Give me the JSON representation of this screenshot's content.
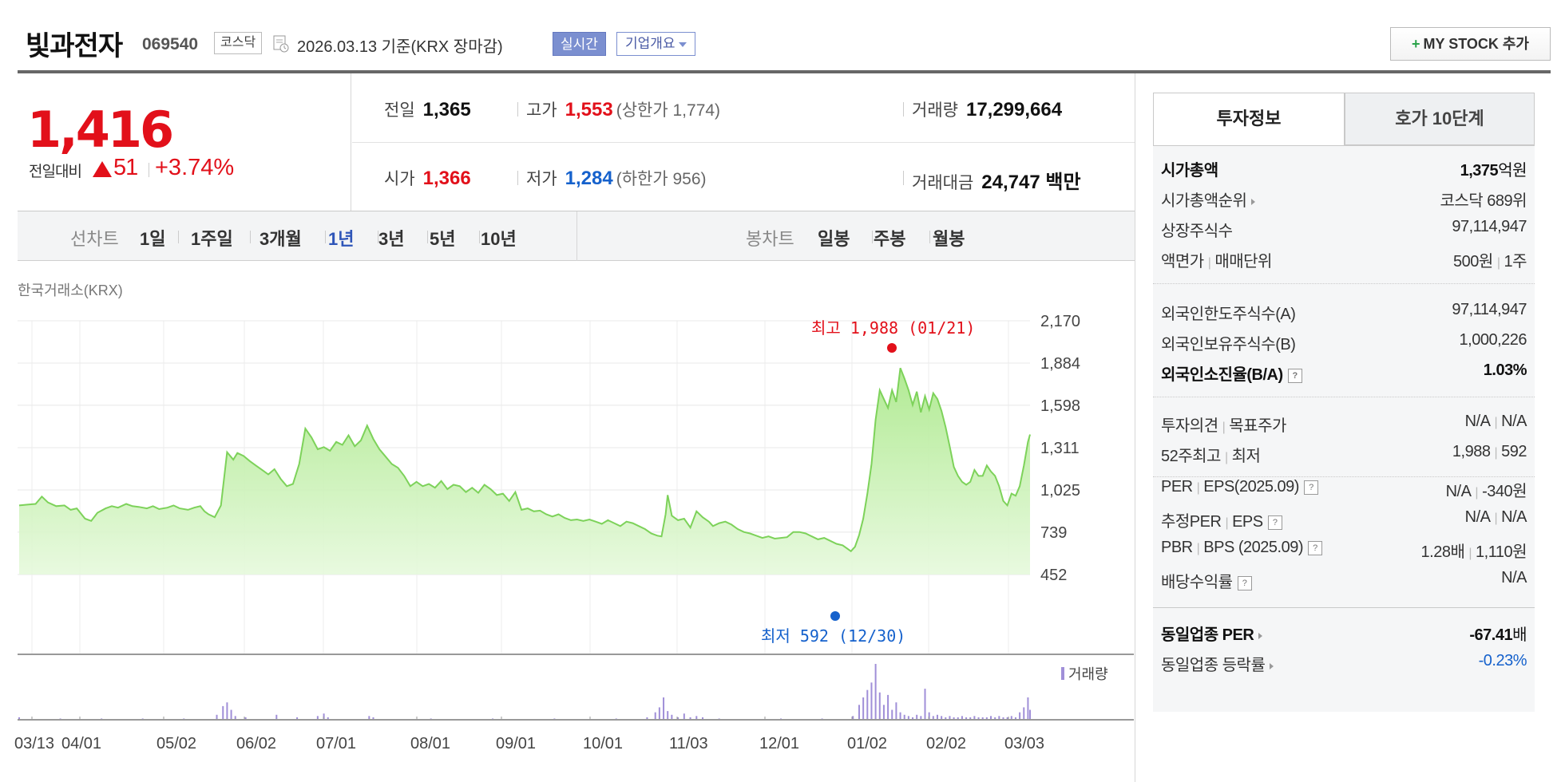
{
  "header": {
    "name": "빛과전자",
    "code": "069540",
    "market": "코스닥",
    "date_text": "2026.03.13  기준(KRX 장마감)",
    "realtime_label": "실시간",
    "overview_label": "기업개요",
    "mystock_plus": "+",
    "mystock_label": "MY STOCK 추가"
  },
  "summary": {
    "price": "1,416",
    "change_label": "전일대비",
    "change": "51",
    "change_rate": "+3.74%",
    "prev_label": "전일",
    "prev": "1,365",
    "high_label": "고가",
    "high": "1,553",
    "upper_label": "(상한가",
    "upper": "1,774)",
    "volume_label": "거래량",
    "volume": "17,299,664",
    "open_label": "시가",
    "open": "1,366",
    "low_label": "저가",
    "low": "1,284",
    "lower_label": "(하한가",
    "lower": "956)",
    "amount_label": "거래대금",
    "amount": "24,747",
    "amount_unit": "백만"
  },
  "tabs": {
    "line_label": "선차트",
    "line_items": [
      "1일",
      "1주일",
      "3개월",
      "1년",
      "3년",
      "5년",
      "10년"
    ],
    "active": "1년",
    "candle_label": "봉차트",
    "candle_items": [
      "일봉",
      "주봉",
      "월봉"
    ]
  },
  "chart_source": "한국거래소(KRX)",
  "chart_data": {
    "type": "area",
    "y_ticks": [
      2170,
      1884,
      1598,
      1311,
      1025,
      739,
      452
    ],
    "ylim": [
      452,
      2170
    ],
    "x_ticks": [
      "03/13",
      "04/01",
      "05/02",
      "06/02",
      "07/01",
      "08/01",
      "09/01",
      "10/01",
      "11/03",
      "12/01",
      "01/02",
      "02/02",
      "03/03"
    ],
    "max_label": "최고 1,988 (01/21)",
    "min_label": "최저 592 (12/30)",
    "volume_legend": "거래량",
    "price_series": [
      [
        0,
        920
      ],
      [
        4,
        925
      ],
      [
        8,
        930
      ],
      [
        11,
        980
      ],
      [
        14,
        940
      ],
      [
        18,
        915
      ],
      [
        22,
        920
      ],
      [
        25,
        890
      ],
      [
        28,
        900
      ],
      [
        32,
        830
      ],
      [
        35,
        815
      ],
      [
        38,
        870
      ],
      [
        42,
        900
      ],
      [
        45,
        915
      ],
      [
        48,
        905
      ],
      [
        52,
        930
      ],
      [
        55,
        915
      ],
      [
        58,
        910
      ],
      [
        62,
        900
      ],
      [
        65,
        915
      ],
      [
        68,
        895
      ],
      [
        72,
        905
      ],
      [
        75,
        920
      ],
      [
        78,
        900
      ],
      [
        82,
        890
      ],
      [
        85,
        905
      ],
      [
        88,
        915
      ],
      [
        90,
        880
      ],
      [
        92,
        860
      ],
      [
        95,
        840
      ],
      [
        98,
        920
      ],
      [
        101,
        1280
      ],
      [
        104,
        1230
      ],
      [
        106,
        1275
      ],
      [
        109,
        1255
      ],
      [
        112,
        1220
      ],
      [
        115,
        1190
      ],
      [
        118,
        1160
      ],
      [
        121,
        1130
      ],
      [
        124,
        1165
      ],
      [
        127,
        1100
      ],
      [
        130,
        1050
      ],
      [
        133,
        1065
      ],
      [
        136,
        1200
      ],
      [
        139,
        1440
      ],
      [
        142,
        1380
      ],
      [
        145,
        1300
      ],
      [
        148,
        1315
      ],
      [
        151,
        1290
      ],
      [
        154,
        1350
      ],
      [
        157,
        1330
      ],
      [
        160,
        1395
      ],
      [
        163,
        1320
      ],
      [
        166,
        1360
      ],
      [
        169,
        1460
      ],
      [
        172,
        1370
      ],
      [
        175,
        1300
      ],
      [
        178,
        1250
      ],
      [
        181,
        1200
      ],
      [
        184,
        1175
      ],
      [
        187,
        1120
      ],
      [
        190,
        1050
      ],
      [
        193,
        1080
      ],
      [
        196,
        1050
      ],
      [
        199,
        1065
      ],
      [
        202,
        1040
      ],
      [
        205,
        1085
      ],
      [
        208,
        1030
      ],
      [
        211,
        1060
      ],
      [
        214,
        1050
      ],
      [
        217,
        1010
      ],
      [
        220,
        1040
      ],
      [
        223,
        1005
      ],
      [
        226,
        1060
      ],
      [
        229,
        1030
      ],
      [
        232,
        990
      ],
      [
        235,
        1000
      ],
      [
        238,
        950
      ],
      [
        241,
        1010
      ],
      [
        244,
        890
      ],
      [
        247,
        900
      ],
      [
        250,
        880
      ],
      [
        253,
        885
      ],
      [
        256,
        860
      ],
      [
        259,
        845
      ],
      [
        262,
        860
      ],
      [
        265,
        835
      ],
      [
        268,
        820
      ],
      [
        271,
        825
      ],
      [
        274,
        815
      ],
      [
        277,
        825
      ],
      [
        280,
        810
      ],
      [
        283,
        795
      ],
      [
        286,
        820
      ],
      [
        289,
        800
      ],
      [
        292,
        780
      ],
      [
        295,
        810
      ],
      [
        298,
        800
      ],
      [
        301,
        780
      ],
      [
        304,
        760
      ],
      [
        307,
        730
      ],
      [
        310,
        715
      ],
      [
        312,
        710
      ],
      [
        314,
        860
      ],
      [
        315,
        990
      ],
      [
        317,
        850
      ],
      [
        320,
        820
      ],
      [
        323,
        830
      ],
      [
        326,
        770
      ],
      [
        329,
        880
      ],
      [
        332,
        840
      ],
      [
        335,
        810
      ],
      [
        337,
        780
      ],
      [
        340,
        800
      ],
      [
        343,
        810
      ],
      [
        346,
        790
      ],
      [
        349,
        760
      ],
      [
        352,
        740
      ],
      [
        355,
        730
      ],
      [
        358,
        715
      ],
      [
        361,
        700
      ],
      [
        364,
        710
      ],
      [
        367,
        695
      ],
      [
        370,
        700
      ],
      [
        373,
        705
      ],
      [
        376,
        740
      ],
      [
        379,
        740
      ],
      [
        382,
        730
      ],
      [
        385,
        710
      ],
      [
        388,
        690
      ],
      [
        391,
        700
      ],
      [
        394,
        680
      ],
      [
        397,
        660
      ],
      [
        400,
        650
      ],
      [
        402,
        630
      ],
      [
        404,
        610
      ],
      [
        406,
        640
      ],
      [
        408,
        720
      ],
      [
        410,
        830
      ],
      [
        412,
        1000
      ],
      [
        414,
        1200
      ],
      [
        416,
        1500
      ],
      [
        418,
        1700
      ],
      [
        420,
        1640
      ],
      [
        422,
        1580
      ],
      [
        424,
        1700
      ],
      [
        426,
        1620
      ],
      [
        428,
        1850
      ],
      [
        430,
        1780
      ],
      [
        432,
        1700
      ],
      [
        434,
        1600
      ],
      [
        436,
        1690
      ],
      [
        438,
        1550
      ],
      [
        440,
        1660
      ],
      [
        442,
        1570
      ],
      [
        444,
        1680
      ],
      [
        446,
        1640
      ],
      [
        448,
        1560
      ],
      [
        450,
        1450
      ],
      [
        452,
        1320
      ],
      [
        454,
        1180
      ],
      [
        456,
        1120
      ],
      [
        458,
        1080
      ],
      [
        460,
        1060
      ],
      [
        462,
        1080
      ],
      [
        464,
        1160
      ],
      [
        466,
        1120
      ],
      [
        468,
        1120
      ],
      [
        470,
        1190
      ],
      [
        472,
        1150
      ],
      [
        474,
        1120
      ],
      [
        476,
        1050
      ],
      [
        478,
        950
      ],
      [
        480,
        920
      ],
      [
        482,
        1000
      ],
      [
        484,
        985
      ],
      [
        486,
        1050
      ],
      [
        488,
        1190
      ],
      [
        490,
        1350
      ],
      [
        491,
        1400
      ]
    ],
    "volume_series": [
      [
        0,
        2
      ],
      [
        20,
        1
      ],
      [
        40,
        1
      ],
      [
        60,
        1
      ],
      [
        80,
        1
      ],
      [
        96,
        4
      ],
      [
        99,
        11
      ],
      [
        101,
        14
      ],
      [
        103,
        8
      ],
      [
        105,
        3
      ],
      [
        110,
        2
      ],
      [
        125,
        4
      ],
      [
        135,
        2
      ],
      [
        145,
        3
      ],
      [
        148,
        5
      ],
      [
        150,
        2
      ],
      [
        170,
        3
      ],
      [
        172,
        2
      ],
      [
        200,
        1
      ],
      [
        230,
        1
      ],
      [
        260,
        1
      ],
      [
        290,
        1
      ],
      [
        305,
        2
      ],
      [
        309,
        6
      ],
      [
        311,
        10
      ],
      [
        313,
        18
      ],
      [
        315,
        7
      ],
      [
        317,
        4
      ],
      [
        320,
        2
      ],
      [
        323,
        5
      ],
      [
        326,
        2
      ],
      [
        329,
        3
      ],
      [
        332,
        2
      ],
      [
        340,
        1
      ],
      [
        370,
        1
      ],
      [
        390,
        1
      ],
      [
        405,
        3
      ],
      [
        408,
        12
      ],
      [
        410,
        18
      ],
      [
        412,
        24
      ],
      [
        414,
        30
      ],
      [
        416,
        45
      ],
      [
        418,
        22
      ],
      [
        420,
        12
      ],
      [
        422,
        20
      ],
      [
        424,
        8
      ],
      [
        426,
        14
      ],
      [
        428,
        6
      ],
      [
        430,
        4
      ],
      [
        432,
        3
      ],
      [
        434,
        2
      ],
      [
        436,
        4
      ],
      [
        438,
        3
      ],
      [
        440,
        25
      ],
      [
        442,
        6
      ],
      [
        444,
        3
      ],
      [
        446,
        4
      ],
      [
        448,
        3
      ],
      [
        450,
        2
      ],
      [
        452,
        3
      ],
      [
        454,
        2
      ],
      [
        456,
        2
      ],
      [
        458,
        3
      ],
      [
        460,
        2
      ],
      [
        462,
        2
      ],
      [
        464,
        3
      ],
      [
        466,
        2
      ],
      [
        468,
        2
      ],
      [
        470,
        2
      ],
      [
        472,
        3
      ],
      [
        474,
        2
      ],
      [
        476,
        3
      ],
      [
        478,
        2
      ],
      [
        480,
        2
      ],
      [
        482,
        3
      ],
      [
        484,
        2
      ],
      [
        486,
        6
      ],
      [
        488,
        10
      ],
      [
        490,
        18
      ],
      [
        491,
        8
      ]
    ]
  },
  "right": {
    "tab_active": "투자정보",
    "tab_other": "호가 10단계",
    "market_cap_label": "시가총액",
    "market_cap": "1,375",
    "market_cap_unit": "억원",
    "cap_rank_label": "시가총액순위",
    "cap_rank": "코스닥 689위",
    "shares_label": "상장주식수",
    "shares": "97,114,947",
    "par_label": "액면가",
    "lot_label": "매매단위",
    "par": "500원",
    "lot": "1주",
    "foreign_limit_label": "외국인한도주식수(A)",
    "foreign_limit": "97,114,947",
    "foreign_hold_label": "외국인보유주식수(B)",
    "foreign_hold": "1,000,226",
    "foreign_ratio_label": "외국인소진율(B/A)",
    "foreign_ratio": "1.03%",
    "opinion_label": "투자의견",
    "target_label": "목표주가",
    "opinion": "N/A",
    "target": "N/A",
    "w52_high_label": "52주최고",
    "w52_low_label": "최저",
    "w52_high": "1,988",
    "w52_low": "592",
    "per_label": "PER",
    "eps_label": "EPS(2025.09)",
    "per": "N/A",
    "eps": "-340원",
    "est_per_label": "추정PER",
    "est_eps_label": "EPS",
    "est_per": "N/A",
    "est_eps": "N/A",
    "pbr_label": "PBR",
    "bps_label": "BPS (2025.09)",
    "pbr": "1.28배",
    "bps": "1,110원",
    "dividend_label": "배당수익률",
    "dividend": "N/A",
    "sector_per_label": "동일업종 PER",
    "sector_per": "-67.41",
    "sector_per_unit": "배",
    "sector_rate_label": "동일업종 등락률",
    "sector_rate": "-0.23%"
  }
}
